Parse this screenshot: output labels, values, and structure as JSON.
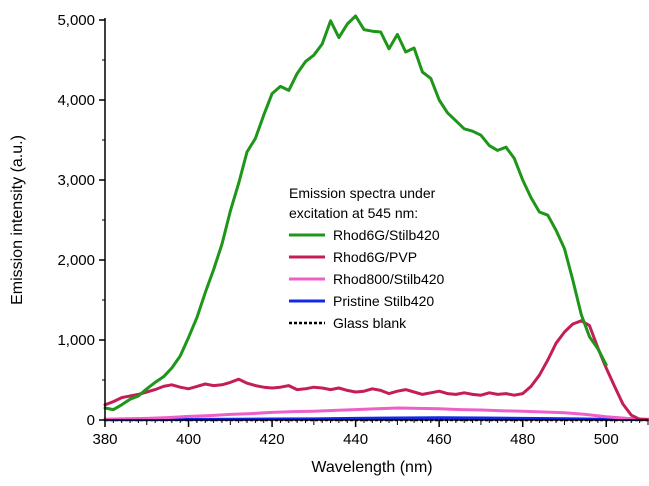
{
  "chart_data": {
    "type": "line",
    "title": "",
    "xlabel": "Wavelength (nm)",
    "ylabel": "Emission intensity (a.u.)",
    "xlim": [
      380,
      510
    ],
    "ylim": [
      0,
      5000
    ],
    "x_ticks": [
      380,
      400,
      420,
      440,
      460,
      480,
      500
    ],
    "x_tick_labels": [
      "380",
      "400",
      "420",
      "440",
      "460",
      "480",
      "500"
    ],
    "y_ticks": [
      0,
      1000,
      2000,
      3000,
      4000,
      5000
    ],
    "y_tick_labels": [
      "0",
      "1,000",
      "2,000",
      "3,000",
      "4,000",
      "5,000"
    ],
    "grid": false,
    "legend": {
      "title_lines": [
        "Emission spectra under",
        "excitation at 545 nm:"
      ],
      "position": "center-right"
    },
    "series": [
      {
        "name": "Rhod6G/Stilb420",
        "color": "#1e9619",
        "dash": "solid",
        "x": [
          380,
          382,
          384,
          386,
          388,
          390,
          392,
          394,
          396,
          398,
          400,
          402,
          404,
          406,
          408,
          410,
          412,
          414,
          416,
          418,
          420,
          422,
          424,
          426,
          428,
          430,
          432,
          434,
          436,
          438,
          440,
          442,
          444,
          446,
          448,
          450,
          452,
          454,
          456,
          458,
          460,
          462,
          464,
          466,
          468,
          470,
          472,
          474,
          476,
          478,
          480,
          482,
          484,
          486,
          488,
          490,
          492,
          494,
          496,
          498,
          500
        ],
        "y": [
          150,
          130,
          190,
          260,
          300,
          390,
          470,
          540,
          650,
          800,
          1030,
          1280,
          1590,
          1880,
          2200,
          2610,
          2960,
          3350,
          3520,
          3810,
          4080,
          4170,
          4120,
          4330,
          4480,
          4560,
          4700,
          4990,
          4780,
          4950,
          5050,
          4880,
          4860,
          4850,
          4640,
          4820,
          4600,
          4650,
          4350,
          4270,
          4000,
          3840,
          3740,
          3640,
          3610,
          3560,
          3430,
          3370,
          3410,
          3270,
          3000,
          2780,
          2600,
          2560,
          2370,
          2140,
          1750,
          1320,
          1040,
          890,
          690
        ]
      },
      {
        "name": "Rhod6G/PVP",
        "color": "#c41e5a",
        "dash": "solid",
        "x": [
          380,
          382,
          384,
          386,
          388,
          390,
          392,
          394,
          396,
          398,
          400,
          402,
          404,
          406,
          408,
          410,
          412,
          414,
          416,
          418,
          420,
          422,
          424,
          426,
          428,
          430,
          432,
          434,
          436,
          438,
          440,
          442,
          444,
          446,
          448,
          450,
          452,
          454,
          456,
          458,
          460,
          462,
          464,
          466,
          468,
          470,
          472,
          474,
          476,
          478,
          480,
          482,
          484,
          486,
          488,
          490,
          492,
          494,
          496,
          498,
          500,
          502,
          504,
          506,
          508,
          510
        ],
        "y": [
          190,
          230,
          280,
          300,
          320,
          350,
          380,
          420,
          440,
          410,
          390,
          420,
          450,
          430,
          440,
          470,
          510,
          460,
          430,
          410,
          400,
          410,
          430,
          380,
          390,
          410,
          400,
          380,
          400,
          370,
          350,
          360,
          390,
          370,
          330,
          360,
          380,
          350,
          320,
          340,
          360,
          330,
          320,
          340,
          320,
          310,
          340,
          320,
          330,
          310,
          330,
          420,
          560,
          750,
          960,
          1100,
          1200,
          1240,
          1180,
          900,
          650,
          420,
          200,
          60,
          10,
          5
        ]
      },
      {
        "name": "Rhod800/Stilb420",
        "color": "#ef5fc8",
        "dash": "solid",
        "x": [
          380,
          385,
          390,
          395,
          400,
          405,
          410,
          415,
          420,
          425,
          430,
          435,
          440,
          445,
          450,
          455,
          460,
          465,
          470,
          475,
          480,
          485,
          490,
          495,
          500,
          505,
          510
        ],
        "y": [
          10,
          15,
          20,
          30,
          45,
          55,
          70,
          80,
          95,
          105,
          110,
          120,
          130,
          140,
          150,
          145,
          140,
          130,
          125,
          115,
          110,
          100,
          90,
          70,
          40,
          20,
          10
        ]
      },
      {
        "name": "Pristine Stilb420",
        "color": "#1428e6",
        "dash": "solid",
        "x": [
          380,
          390,
          400,
          410,
          420,
          430,
          440,
          450,
          460,
          470,
          480,
          490,
          500,
          510
        ],
        "y": [
          5,
          5,
          8,
          10,
          12,
          14,
          20,
          25,
          28,
          25,
          20,
          15,
          10,
          5
        ]
      },
      {
        "name": "Glass blank",
        "color": "#000000",
        "dash": "dotted",
        "x": [
          380,
          390,
          400,
          410,
          420,
          430,
          440,
          450,
          460,
          470,
          480,
          490,
          500,
          510
        ],
        "y": [
          0,
          0,
          0,
          0,
          0,
          0,
          0,
          0,
          0,
          0,
          0,
          0,
          0,
          0
        ]
      }
    ]
  }
}
